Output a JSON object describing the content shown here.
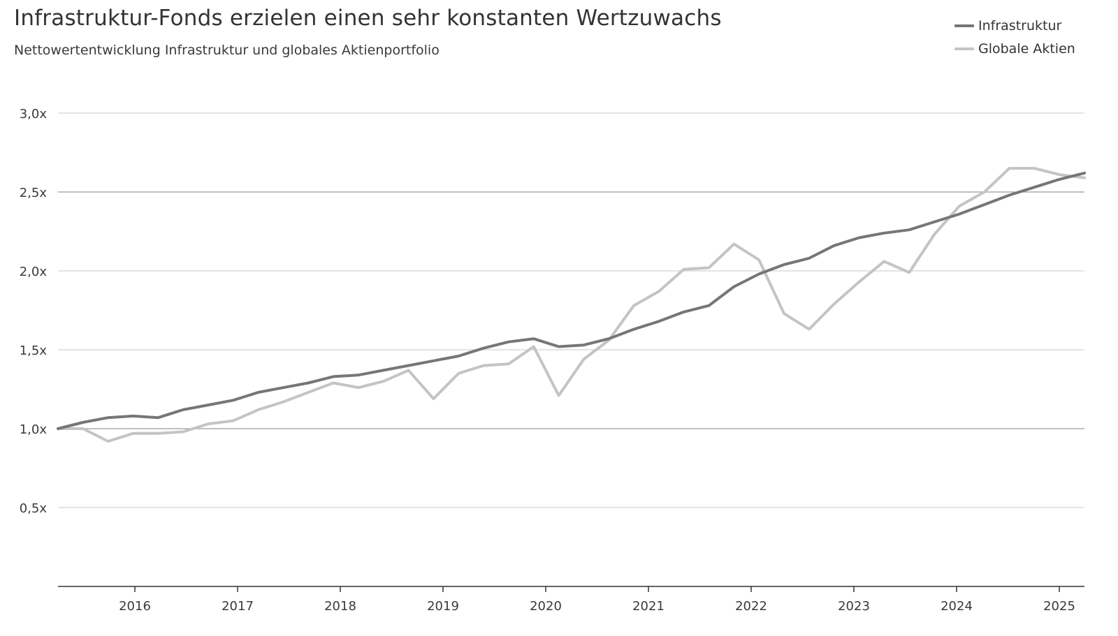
{
  "header": {
    "title": "Infrastruktur-Fonds erzielen einen sehr konstanten Wertzuwachs",
    "subtitle": "Nettowertentwicklung Infrastruktur und globales Aktienportfolio"
  },
  "legend": {
    "items": [
      {
        "label": "Infrastruktur",
        "color": "#767676"
      },
      {
        "label": "Globale Aktien",
        "color": "#c4c4c4"
      }
    ],
    "placement": "top-right"
  },
  "chart_data": {
    "type": "line",
    "title": "Infrastruktur-Fonds erzielen einen sehr konstanten Wertzuwachs",
    "subtitle": "Nettowertentwicklung Infrastruktur und globales Aktienportfolio",
    "xlabel": "",
    "ylabel": "",
    "x": [
      "Q1 2015",
      "Q2 2015",
      "Q3 2015",
      "Q4 2015",
      "Q1 2016",
      "Q2 2016",
      "Q3 2016",
      "Q4 2016",
      "Q1 2017",
      "Q2 2017",
      "Q3 2017",
      "Q4 2017",
      "Q1 2018",
      "Q2 2018",
      "Q3 2018",
      "Q4 2018",
      "Q1 2019",
      "Q2 2019",
      "Q3 2019",
      "Q4 2019",
      "Q1 2020",
      "Q2 2020",
      "Q3 2020",
      "Q4 2020",
      "Q1 2021",
      "Q2 2021",
      "Q3 2021",
      "Q4 2021",
      "Q1 2022",
      "Q2 2022",
      "Q3 2022",
      "Q4 2022",
      "Q1 2023",
      "Q2 2023",
      "Q3 2023",
      "Q4 2023",
      "Q1 2024",
      "Q2 2024",
      "Q3 2024",
      "Q4 2024",
      "Q1 2025",
      "Q2 2025"
    ],
    "xticks": [
      "2016",
      "2017",
      "2018",
      "2019",
      "2020",
      "2021",
      "2022",
      "2023",
      "2024",
      "2025"
    ],
    "yticks": [
      "0,5x",
      "1,0x",
      "1,5x",
      "2,0x",
      "2,5x",
      "3,0x"
    ],
    "ytick_values": [
      0.5,
      1.0,
      1.5,
      2.0,
      2.5,
      3.0
    ],
    "ylim": [
      0,
      3.0
    ],
    "grid": true,
    "legend_position": "top-right",
    "series": [
      {
        "name": "Infrastruktur",
        "color": "#767676",
        "values": [
          1.0,
          1.04,
          1.07,
          1.08,
          1.07,
          1.12,
          1.15,
          1.18,
          1.23,
          1.26,
          1.29,
          1.33,
          1.34,
          1.37,
          1.4,
          1.43,
          1.46,
          1.51,
          1.55,
          1.57,
          1.52,
          1.53,
          1.57,
          1.63,
          1.68,
          1.74,
          1.78,
          1.9,
          1.98,
          2.04,
          2.08,
          2.16,
          2.21,
          2.24,
          2.26,
          2.31,
          2.36,
          2.42,
          2.48,
          2.53,
          2.58,
          2.62
        ]
      },
      {
        "name": "Globale Aktien",
        "color": "#c4c4c4",
        "values": [
          1.0,
          1.0,
          0.92,
          0.97,
          0.97,
          0.98,
          1.03,
          1.05,
          1.12,
          1.17,
          1.23,
          1.29,
          1.26,
          1.3,
          1.37,
          1.19,
          1.35,
          1.4,
          1.41,
          1.52,
          1.21,
          1.44,
          1.56,
          1.78,
          1.87,
          2.01,
          2.02,
          2.17,
          2.07,
          1.73,
          1.63,
          1.79,
          1.93,
          2.06,
          1.99,
          2.23,
          2.41,
          2.5,
          2.65,
          2.65,
          2.61,
          2.59
        ]
      }
    ]
  }
}
